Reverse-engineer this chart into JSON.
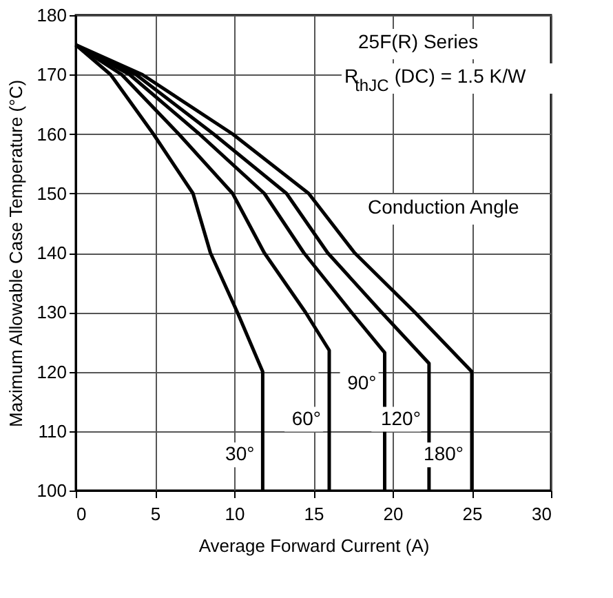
{
  "chart_data": {
    "type": "line",
    "xlabel": "Average Forward Current (A)",
    "ylabel": "Maximum Allowable Case Temperature (°C)",
    "series": [
      {
        "name": "30°",
        "color": "#000000",
        "x": [
          0,
          2.2,
          4.9,
          7.4,
          8.5,
          10.2,
          11.8,
          11.8
        ],
        "values": [
          175,
          170,
          160,
          150,
          140,
          130,
          120,
          100
        ]
      },
      {
        "name": "60°",
        "color": "#000000",
        "x": [
          0,
          2.9,
          6.5,
          9.9,
          11.9,
          14.5,
          16.0,
          16.0
        ],
        "values": [
          175,
          170,
          160,
          150,
          140,
          130,
          123.6,
          100
        ]
      },
      {
        "name": "90°",
        "color": "#000000",
        "x": [
          0,
          3.4,
          7.8,
          11.9,
          14.4,
          17.4,
          19.5,
          19.5
        ],
        "values": [
          175,
          170,
          160,
          150,
          140,
          130,
          123.2,
          100
        ]
      },
      {
        "name": "120°",
        "color": "#000000",
        "x": [
          0,
          3.8,
          8.7,
          13.3,
          15.9,
          19.3,
          22.3,
          22.3
        ],
        "values": [
          175,
          170,
          160,
          150,
          140,
          130,
          121.4,
          100
        ]
      },
      {
        "name": "180°",
        "color": "#000000",
        "x": [
          0,
          4.2,
          9.9,
          14.7,
          17.6,
          21.4,
          25.0,
          25.0
        ],
        "values": [
          175,
          170,
          160,
          150,
          140,
          130,
          120,
          100
        ]
      }
    ],
    "annotations": [
      "25F(R) Series",
      "R$_{thJC}$ (DC) = 1.5 K/W",
      "Conduction Angle"
    ],
    "xlim": [
      0,
      30
    ],
    "xticks": [
      0,
      5,
      10,
      15,
      20,
      25,
      30
    ],
    "ylim": [
      100,
      180
    ],
    "yticks": [
      100,
      110,
      120,
      130,
      140,
      150,
      160,
      170,
      180
    ],
    "grid": true,
    "marker": "none",
    "line_style": "solid"
  }
}
